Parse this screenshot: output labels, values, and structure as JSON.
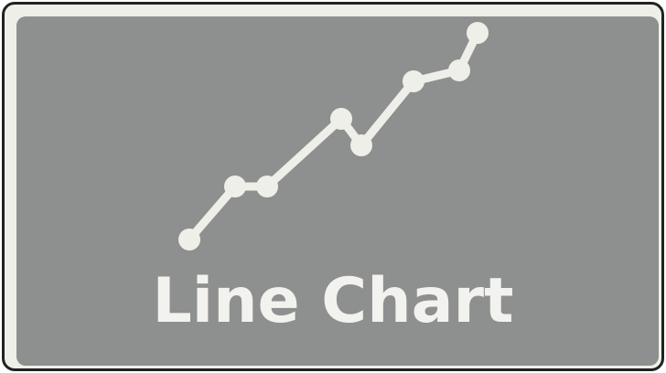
{
  "tile": {
    "label": "Line Chart",
    "icon": "line-chart-icon",
    "colors": {
      "outer_border": "#222222",
      "frame_fill": "#efefea",
      "panel_fill": "#8e908f",
      "foreground": "#f2f2ee"
    }
  }
}
